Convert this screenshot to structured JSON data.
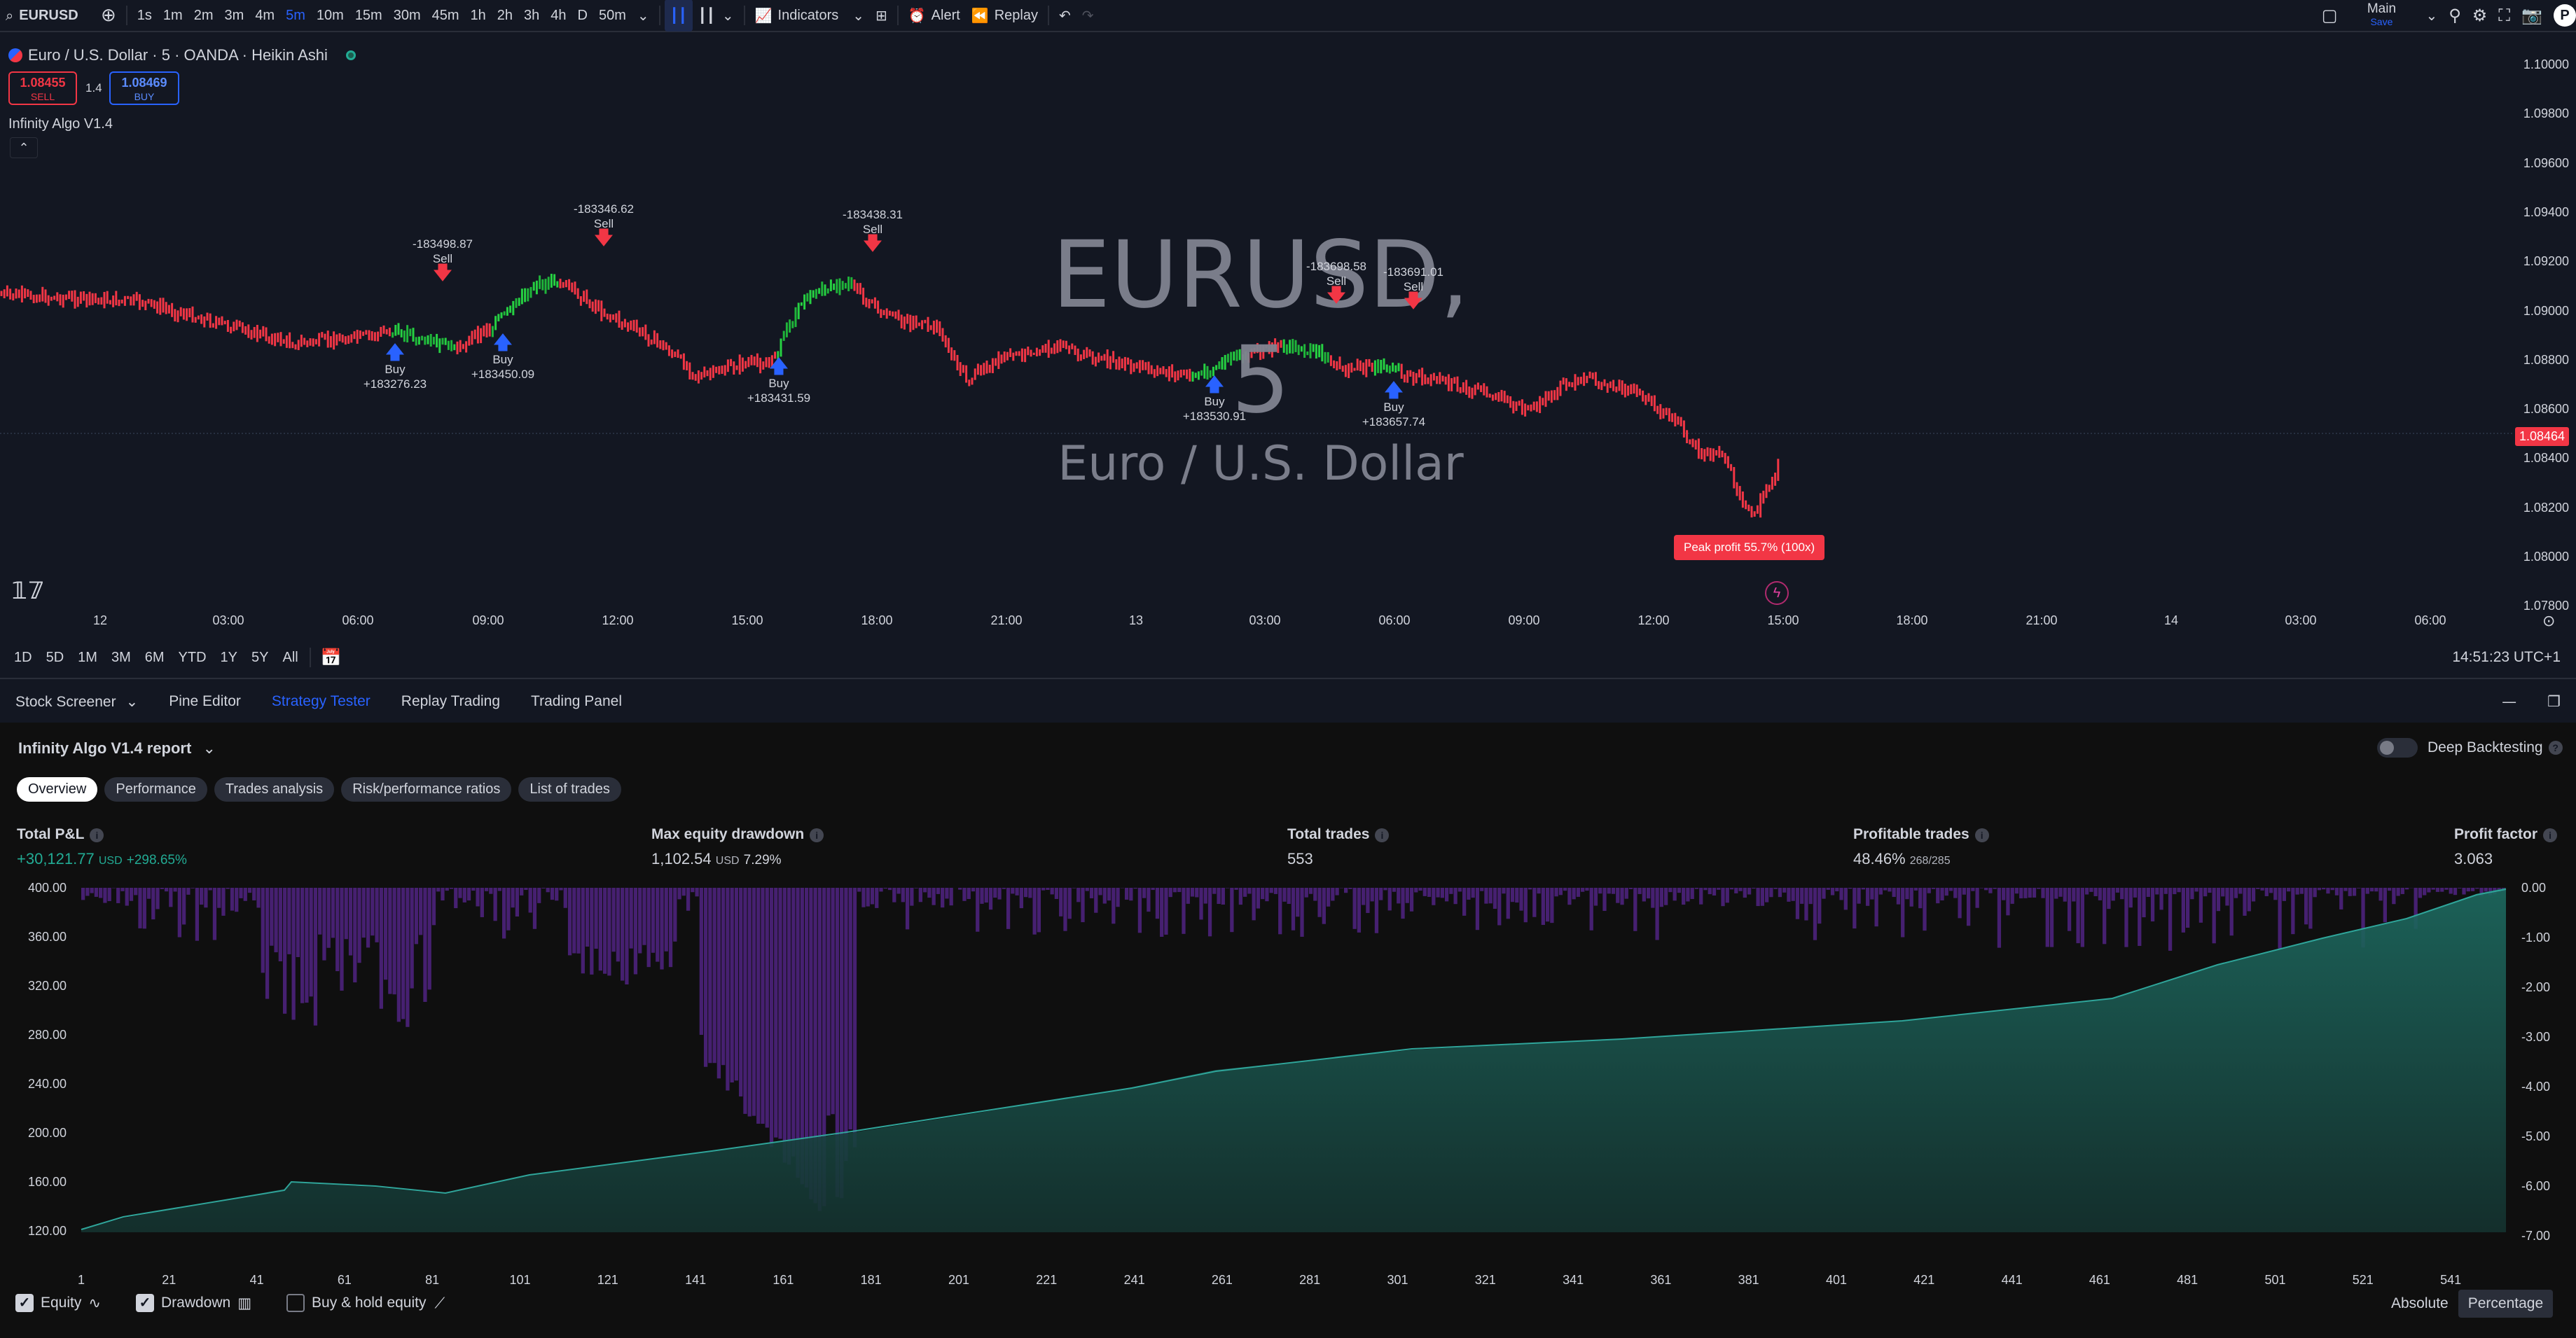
{
  "toolbar": {
    "symbol": "EURUSD",
    "intervals": [
      "1s",
      "1m",
      "2m",
      "3m",
      "4m",
      "5m",
      "10m",
      "15m",
      "30m",
      "45m",
      "1h",
      "2h",
      "3h",
      "4h",
      "D",
      "50m"
    ],
    "active_interval": "5m",
    "indicators_label": "Indicators",
    "alert_label": "Alert",
    "replay_label": "Replay",
    "layout_name": "Main",
    "layout_status": "Save",
    "avatar_letter": "P"
  },
  "chart": {
    "legend_title": "Euro / U.S. Dollar · 5 · OANDA · Heikin Ashi",
    "sell_price": "1.08455",
    "sell_label": "SELL",
    "spread": "1.4",
    "buy_price": "1.08469",
    "buy_label": "BUY",
    "indicator_name": "Infinity Algo V1.4",
    "watermark_symbol": "EURUSD, 5",
    "watermark_name": "Euro / U.S. Dollar",
    "price_ticks": [
      "1.10000",
      "1.09800",
      "1.09600",
      "1.09400",
      "1.09200",
      "1.09000",
      "1.08800",
      "1.08600",
      "1.08400",
      "1.08200",
      "1.08000",
      "1.07800"
    ],
    "current_price": "1.08464",
    "time_ticks": [
      "12",
      "03:00",
      "06:00",
      "09:00",
      "12:00",
      "15:00",
      "18:00",
      "21:00",
      "13",
      "03:00",
      "06:00",
      "09:00",
      "12:00",
      "15:00",
      "18:00",
      "21:00",
      "14",
      "03:00",
      "06:00"
    ],
    "signals": [
      {
        "type": "buy",
        "label": "Buy",
        "value": "+183276.23"
      },
      {
        "type": "sell",
        "label": "Sell",
        "value": "-183498.87"
      },
      {
        "type": "buy",
        "label": "Buy",
        "value": "+183450.09"
      },
      {
        "type": "sell",
        "label": "Sell",
        "value": "-183346.62"
      },
      {
        "type": "buy",
        "label": "Buy",
        "value": "+183431.59"
      },
      {
        "type": "sell",
        "label": "Sell",
        "value": "-183438.31"
      },
      {
        "type": "buy",
        "label": "Buy",
        "value": "+183530.91"
      },
      {
        "type": "sell",
        "label": "Sell",
        "value": "-183698.58"
      },
      {
        "type": "buy",
        "label": "Buy",
        "value": "+183657.74"
      },
      {
        "type": "sell",
        "label": "Sell",
        "value": "-183691.01"
      }
    ],
    "peak_label": "Peak profit 55.7% (100x)"
  },
  "rangebar": {
    "ranges": [
      "1D",
      "5D",
      "1M",
      "3M",
      "6M",
      "YTD",
      "1Y",
      "5Y",
      "All"
    ],
    "clock": "14:51:23 UTC+1"
  },
  "panel": {
    "tabs": [
      "Stock Screener",
      "Pine Editor",
      "Strategy Tester",
      "Replay Trading",
      "Trading Panel"
    ],
    "active_tab": "Strategy Tester",
    "report_title": "Infinity Algo V1.4 report",
    "deep_backtesting": "Deep Backtesting",
    "subtabs": [
      "Overview",
      "Performance",
      "Trades analysis",
      "Risk/performance ratios",
      "List of trades"
    ],
    "metrics": {
      "total_pnl_title": "Total P&L",
      "total_pnl_value": "+30,121.77",
      "total_pnl_unit": "USD",
      "total_pnl_pct": "+298.65%",
      "drawdown_title": "Max equity drawdown",
      "drawdown_value": "1,102.54",
      "drawdown_unit": "USD",
      "drawdown_pct": "7.29%",
      "trades_title": "Total trades",
      "trades_value": "553",
      "profitable_title": "Profitable trades",
      "profitable_value": "48.46%",
      "profitable_ratio": "268/285",
      "pf_title": "Profit factor",
      "pf_value": "3.063"
    },
    "equity_axis_left": [
      "400.00",
      "360.00",
      "320.00",
      "280.00",
      "240.00",
      "200.00",
      "160.00",
      "120.00"
    ],
    "equity_axis_right": [
      "0.00",
      "-1.00",
      "-2.00",
      "-3.00",
      "-4.00",
      "-5.00",
      "-6.00",
      "-7.00"
    ],
    "trade_axis": [
      "1",
      "21",
      "41",
      "61",
      "81",
      "101",
      "121",
      "141",
      "161",
      "181",
      "201",
      "221",
      "241",
      "261",
      "281",
      "301",
      "321",
      "341",
      "361",
      "381",
      "401",
      "421",
      "441",
      "461",
      "481",
      "501",
      "521",
      "541"
    ],
    "legend": {
      "equity": "Equity",
      "drawdown": "Drawdown",
      "buyhold": "Buy & hold equity"
    },
    "mode_absolute": "Absolute",
    "mode_percentage": "Percentage"
  },
  "colors": {
    "bg": "#131722",
    "accent": "#2962ff",
    "up": "#26d142",
    "down": "#f23645",
    "equity": "#1e6e63",
    "drawdown": "#5b2a86"
  }
}
